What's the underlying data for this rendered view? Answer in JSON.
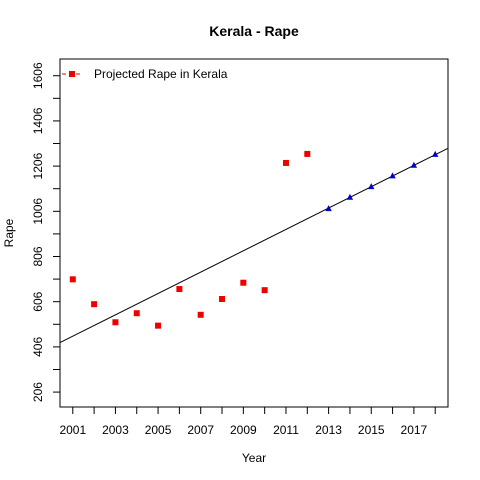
{
  "chart_data": {
    "type": "scatter",
    "title": "Kerala  -  Rape",
    "xlabel": "Year",
    "ylabel": "Rape",
    "xlim": [
      2000.4,
      2018.6
    ],
    "ylim": [
      140,
      1680
    ],
    "x_ticks": [
      2001,
      2002,
      2003,
      2004,
      2005,
      2006,
      2007,
      2008,
      2009,
      2010,
      2011,
      2012,
      2013,
      2014,
      2015,
      2016,
      2017,
      2018
    ],
    "x_tick_labels": [
      "2001",
      "",
      "2003",
      "",
      "2005",
      "",
      "2007",
      "",
      "2009",
      "",
      "2011",
      "",
      "2013",
      "",
      "2015",
      "",
      "2017",
      ""
    ],
    "y_ticks": [
      206,
      306,
      406,
      506,
      606,
      706,
      806,
      906,
      1006,
      1106,
      1206,
      1306,
      1406,
      1506,
      1606
    ],
    "y_tick_labels": [
      "206",
      "",
      "406",
      "",
      "606",
      "",
      "806",
      "",
      "1006",
      "",
      "1206",
      "",
      "1406",
      "",
      "1606"
    ],
    "legend": {
      "position": "top-left",
      "entries": [
        "Projected Rape in Kerala"
      ]
    },
    "grid": false,
    "series": [
      {
        "name": "Projected Rape in Kerala",
        "marker": "square",
        "color": "#ee0000",
        "x": [
          2001,
          2002,
          2003,
          2004,
          2005,
          2006,
          2007,
          2008,
          2009,
          2010,
          2011,
          2012
        ],
        "y": [
          705,
          595,
          515,
          555,
          500,
          662,
          548,
          618,
          690,
          657,
          1220,
          1260
        ]
      },
      {
        "marker": "triangle",
        "color": "#0000cc",
        "x": [
          2013,
          2014,
          2015,
          2016,
          2017,
          2018
        ],
        "y": [
          1018,
          1068,
          1115,
          1163,
          1210,
          1258
        ]
      }
    ],
    "trend_line": {
      "x": [
        2000.4,
        2018.6
      ],
      "y": [
        425,
        1285
      ],
      "color": "#000000"
    }
  }
}
